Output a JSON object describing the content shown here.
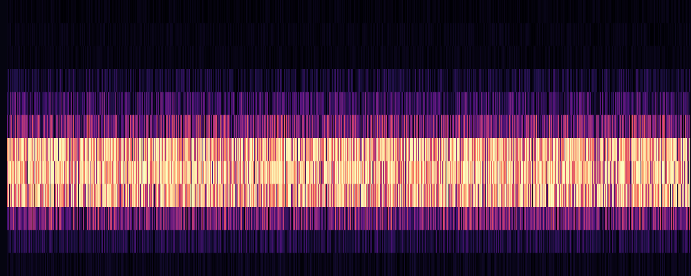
{
  "chart_data": {
    "type": "heatmap",
    "title": "",
    "xlabel": "",
    "ylabel": "",
    "colormap": "magma",
    "background_color": "#050510",
    "grid": false,
    "legend": "none",
    "x_range": [
      0,
      988
    ],
    "rows": 12,
    "row_profile": [
      0.02,
      0.03,
      0.03,
      0.1,
      0.22,
      0.42,
      0.88,
      0.93,
      0.8,
      0.38,
      0.14,
      0.05
    ],
    "row_noise": [
      0.03,
      0.03,
      0.03,
      0.1,
      0.16,
      0.26,
      0.18,
      0.16,
      0.2,
      0.24,
      0.1,
      0.04
    ],
    "seed": 7
  }
}
